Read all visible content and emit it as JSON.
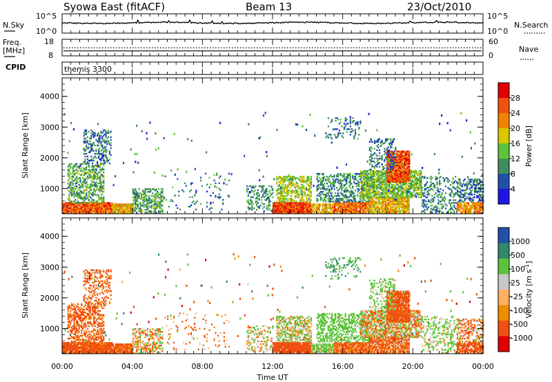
{
  "header": {
    "station": "Syowa East (fitACF)",
    "beam": "Beam 13",
    "date": "23/Oct/2010"
  },
  "noise_panel": {
    "left_label": "N.Sky",
    "right_label": "N.Search",
    "left_ticks": [
      "10^5",
      "10^0"
    ],
    "right_ticks": [
      "10^5",
      "10^0"
    ]
  },
  "freq_panel": {
    "left_label_line1": "Freq.",
    "left_label_line2": "[MHz]",
    "right_label": "Nave",
    "left_ticks": [
      "18",
      "8"
    ],
    "right_ticks": [
      "60",
      "0"
    ],
    "freq_mhz_approx": 11,
    "nave_approx": 29
  },
  "cpid": {
    "label": "CPID",
    "value": "themis 3300"
  },
  "colors": {
    "power": [
      "#1e16e6",
      "#2050a8",
      "#3f8c5c",
      "#5cc43a",
      "#d8c800",
      "#f08400",
      "#f05010",
      "#e00000"
    ],
    "velocity": [
      "#e00000",
      "#f05010",
      "#f08c00",
      "#ffb060",
      "#c8c8c8",
      "#5cc43a",
      "#2e8a6a",
      "#2050a8"
    ]
  },
  "chart_data": [
    {
      "type": "heatmap",
      "parameter": "power",
      "x_range_hours": [
        0,
        24
      ],
      "xticks": [
        "00:00",
        "04:00",
        "08:00",
        "12:00",
        "16:00",
        "20:00",
        "00:00"
      ],
      "xlabel": "Time UT",
      "ylabel": "Slant Range [km]",
      "ylim_km": [
        180,
        4600
      ],
      "yticks": [
        "1000",
        "2000",
        "3000",
        "4000"
      ],
      "colorbar_label": "Power [dB]",
      "colorbar_ticks": [
        "28",
        "24",
        "20",
        "16",
        "12",
        "8",
        "4"
      ],
      "colorbar_range": [
        0,
        32
      ],
      "regions": [
        {
          "t": [
            0.0,
            2.8
          ],
          "r": [
            200,
            520
          ],
          "v": 25,
          "d": 0.95
        },
        {
          "t": [
            0.3,
            2.4
          ],
          "r": [
            520,
            1800
          ],
          "v": 12,
          "d": 0.5
        },
        {
          "t": [
            1.2,
            2.8
          ],
          "r": [
            1800,
            2900
          ],
          "v": 8,
          "d": 0.35
        },
        {
          "t": [
            2.8,
            4.0
          ],
          "r": [
            200,
            480
          ],
          "v": 20,
          "d": 0.9
        },
        {
          "t": [
            4.0,
            5.7
          ],
          "r": [
            200,
            1000
          ],
          "v": 12,
          "d": 0.5
        },
        {
          "t": [
            5.7,
            9.5
          ],
          "r": [
            300,
            1500
          ],
          "v": 8,
          "d": 0.05
        },
        {
          "t": [
            10.5,
            12.0
          ],
          "r": [
            250,
            1100
          ],
          "v": 10,
          "d": 0.3
        },
        {
          "t": [
            12.0,
            14.2
          ],
          "r": [
            200,
            560
          ],
          "v": 26,
          "d": 0.95
        },
        {
          "t": [
            12.2,
            14.2
          ],
          "r": [
            560,
            1400
          ],
          "v": 16,
          "d": 0.55
        },
        {
          "t": [
            14.2,
            15.5
          ],
          "r": [
            200,
            480
          ],
          "v": 20,
          "d": 0.8
        },
        {
          "t": [
            15.5,
            17.5
          ],
          "r": [
            200,
            560
          ],
          "v": 24,
          "d": 0.9
        },
        {
          "t": [
            14.5,
            17.5
          ],
          "r": [
            560,
            1500
          ],
          "v": 10,
          "d": 0.45
        },
        {
          "t": [
            15.0,
            17.0
          ],
          "r": [
            2600,
            3300
          ],
          "v": 8,
          "d": 0.2
        },
        {
          "t": [
            17.5,
            19.8
          ],
          "r": [
            200,
            700
          ],
          "v": 20,
          "d": 0.85
        },
        {
          "t": [
            17.0,
            20.5
          ],
          "r": [
            700,
            1600
          ],
          "v": 14,
          "d": 0.75
        },
        {
          "t": [
            18.5,
            19.8
          ],
          "r": [
            1200,
            2200
          ],
          "v": 26,
          "d": 0.85
        },
        {
          "t": [
            17.5,
            19.0
          ],
          "r": [
            1600,
            2600
          ],
          "v": 8,
          "d": 0.3
        },
        {
          "t": [
            20.5,
            22.5
          ],
          "r": [
            200,
            1400
          ],
          "v": 9,
          "d": 0.3
        },
        {
          "t": [
            22.5,
            24.0
          ],
          "r": [
            200,
            560
          ],
          "v": 22,
          "d": 0.8
        },
        {
          "t": [
            22.5,
            24.0
          ],
          "r": [
            560,
            1300
          ],
          "v": 8,
          "d": 0.45
        }
      ]
    },
    {
      "type": "heatmap",
      "parameter": "velocity",
      "x_range_hours": [
        0,
        24
      ],
      "xticks": [
        "00:00",
        "04:00",
        "08:00",
        "12:00",
        "16:00",
        "20:00",
        "00:00"
      ],
      "xlabel": "Time UT",
      "ylabel": "Slant Range [km]",
      "ylim_km": [
        180,
        4600
      ],
      "yticks": [
        "1000",
        "2000",
        "3000",
        "4000"
      ],
      "colorbar_label": "Velocity [m s^-1]",
      "colorbar_ticks": [
        "1000",
        "500",
        "100",
        "25",
        "-25",
        "-100",
        "-500",
        "-1000"
      ],
      "regions": [
        {
          "t": [
            0.0,
            2.8
          ],
          "r": [
            200,
            520
          ],
          "v": -250,
          "d": 0.95
        },
        {
          "t": [
            0.3,
            2.4
          ],
          "r": [
            520,
            1800
          ],
          "v": -180,
          "d": 0.5
        },
        {
          "t": [
            1.2,
            2.8
          ],
          "r": [
            1800,
            2900
          ],
          "v": -150,
          "d": 0.35
        },
        {
          "t": [
            2.8,
            4.0
          ],
          "r": [
            200,
            480
          ],
          "v": -200,
          "d": 0.9
        },
        {
          "t": [
            4.0,
            5.7
          ],
          "r": [
            200,
            1000
          ],
          "v": 0,
          "d": 0.5
        },
        {
          "t": [
            5.7,
            9.5
          ],
          "r": [
            300,
            1500
          ],
          "v": -120,
          "d": 0.05
        },
        {
          "t": [
            10.5,
            12.0
          ],
          "r": [
            250,
            1100
          ],
          "v": 60,
          "d": 0.3
        },
        {
          "t": [
            12.0,
            14.2
          ],
          "r": [
            200,
            560
          ],
          "v": -300,
          "d": 0.95
        },
        {
          "t": [
            12.2,
            14.2
          ],
          "r": [
            560,
            1400
          ],
          "v": 80,
          "d": 0.55
        },
        {
          "t": [
            14.2,
            15.5
          ],
          "r": [
            200,
            480
          ],
          "v": 150,
          "d": 0.8
        },
        {
          "t": [
            15.5,
            17.5
          ],
          "r": [
            200,
            560
          ],
          "v": -200,
          "d": 0.9
        },
        {
          "t": [
            14.5,
            17.5
          ],
          "r": [
            560,
            1500
          ],
          "v": 300,
          "d": 0.45
        },
        {
          "t": [
            15.0,
            17.0
          ],
          "r": [
            2600,
            3300
          ],
          "v": 500,
          "d": 0.2
        },
        {
          "t": [
            17.5,
            19.8
          ],
          "r": [
            200,
            700
          ],
          "v": -150,
          "d": 0.85
        },
        {
          "t": [
            17.0,
            20.5
          ],
          "r": [
            700,
            1600
          ],
          "v": 0,
          "d": 0.75
        },
        {
          "t": [
            18.5,
            19.8
          ],
          "r": [
            1200,
            2200
          ],
          "v": -250,
          "d": 0.85
        },
        {
          "t": [
            17.5,
            19.0
          ],
          "r": [
            1600,
            2600
          ],
          "v": 200,
          "d": 0.3
        },
        {
          "t": [
            20.5,
            22.5
          ],
          "r": [
            200,
            1400
          ],
          "v": 150,
          "d": 0.3
        },
        {
          "t": [
            22.5,
            24.0
          ],
          "r": [
            200,
            560
          ],
          "v": -250,
          "d": 0.8
        },
        {
          "t": [
            22.5,
            24.0
          ],
          "r": [
            560,
            1300
          ],
          "v": -80,
          "d": 0.45
        }
      ]
    }
  ]
}
